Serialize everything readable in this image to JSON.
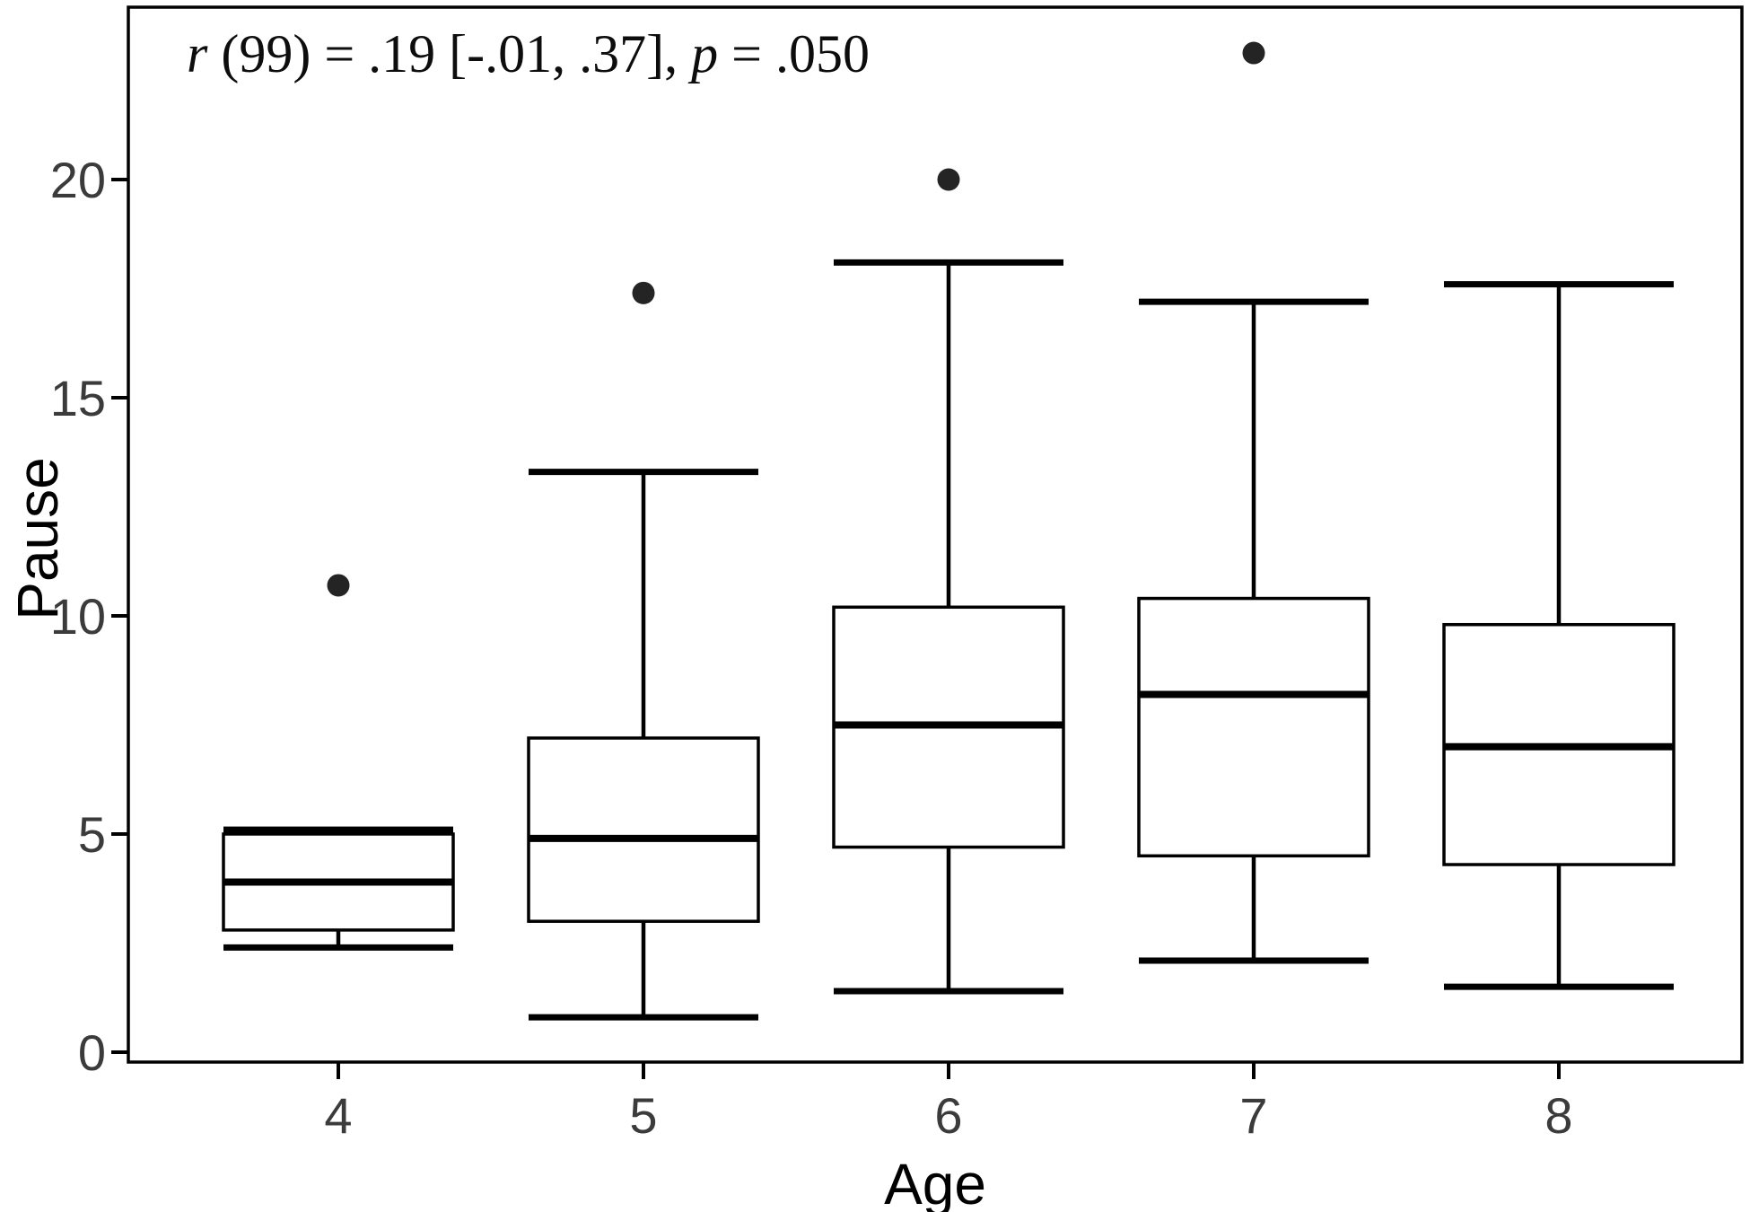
{
  "chart_data": {
    "type": "boxplot",
    "title": "",
    "annotation": {
      "full_text": "r (99) = .19 [-.01, .37], p = .050",
      "r_symbol": "r",
      "middle": " (99) = .19 [-.01, .37], ",
      "p_symbol": "p",
      "tail": " = .050"
    },
    "xlabel": "Age",
    "ylabel": "Pause",
    "x_categories": [
      "4",
      "5",
      "6",
      "7",
      "8"
    ],
    "y_ticks": [
      "0",
      "5",
      "10",
      "15",
      "20"
    ],
    "y_axis_range": [
      0,
      24
    ],
    "grid": false,
    "legend_position": "none",
    "boxes": [
      {
        "age": "4",
        "whisker_low": 2.4,
        "q1": 2.8,
        "median": 3.9,
        "q3": 5.0,
        "whisker_high": 5.1,
        "outliers": [
          10.7
        ]
      },
      {
        "age": "5",
        "whisker_low": 0.8,
        "q1": 3.0,
        "median": 4.9,
        "q3": 7.2,
        "whisker_high": 13.3,
        "outliers": [
          17.4
        ]
      },
      {
        "age": "6",
        "whisker_low": 1.4,
        "q1": 4.7,
        "median": 7.5,
        "q3": 10.2,
        "whisker_high": 18.1,
        "outliers": [
          20.0
        ]
      },
      {
        "age": "7",
        "whisker_low": 2.1,
        "q1": 4.5,
        "median": 8.2,
        "q3": 10.4,
        "whisker_high": 17.2,
        "outliers": [
          22.9
        ]
      },
      {
        "age": "8",
        "whisker_low": 1.5,
        "q1": 4.3,
        "median": 7.0,
        "q3": 9.8,
        "whisker_high": 17.6,
        "outliers": []
      }
    ],
    "colors": {
      "line": "#000000",
      "box_fill": "#ffffff",
      "outlier_fill": "#242424",
      "tick_label": "#3b3b3b",
      "axis_title": "#000000",
      "background": "#ffffff"
    }
  }
}
